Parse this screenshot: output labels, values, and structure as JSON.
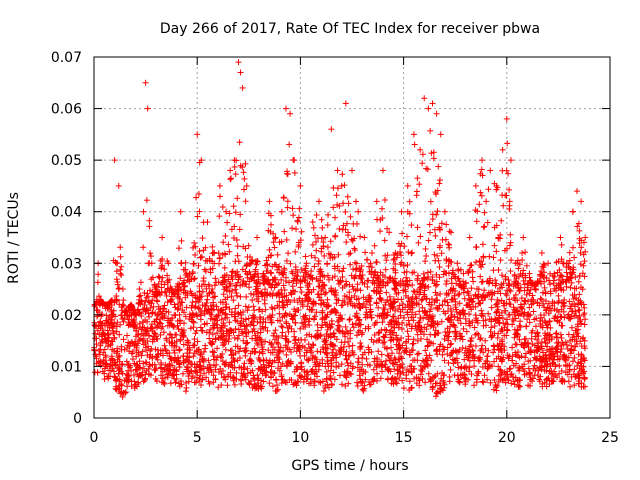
{
  "chart_data": {
    "type": "scatter",
    "title": "Day 266 of 2017, Rate Of TEC Index for receiver pbwa",
    "xlabel": "GPS time / hours",
    "ylabel": "ROTI / TECUs",
    "xlim": [
      0,
      25
    ],
    "ylim": [
      0,
      0.07
    ],
    "xticks": [
      0,
      5,
      10,
      15,
      20,
      25
    ],
    "xtick_labels": [
      "0",
      "5",
      "10",
      "15",
      "20",
      "25"
    ],
    "yticks": [
      0,
      0.01,
      0.02,
      0.03,
      0.04,
      0.05,
      0.06,
      0.07
    ],
    "ytick_labels": [
      "0",
      "0.01",
      "0.02",
      "0.03",
      "0.04",
      "0.05",
      "0.06",
      "0.07"
    ],
    "grid": true,
    "marker": "+",
    "color": "#ff0000",
    "series": [
      {
        "name": "ROTI",
        "x": [
          0.1,
          0.2,
          0.3,
          0.5,
          0.7,
          0.9,
          1.0,
          1.1,
          1.2,
          1.4,
          1.6,
          1.8,
          2.0,
          2.2,
          2.4,
          2.5,
          2.6,
          2.8,
          3.0,
          3.3,
          3.6,
          3.9,
          4.2,
          4.5,
          4.8,
          5.0,
          5.2,
          5.5,
          5.8,
          6.1,
          6.4,
          6.6,
          6.8,
          7.0,
          7.1,
          7.2,
          7.4,
          7.6,
          7.9,
          8.2,
          8.5,
          8.8,
          9.1,
          9.3,
          9.5,
          9.7,
          10.0,
          10.3,
          10.6,
          10.9,
          11.2,
          11.5,
          11.8,
          12.0,
          12.2,
          12.5,
          12.8,
          13.1,
          13.4,
          13.7,
          14.0,
          14.3,
          14.6,
          14.9,
          15.2,
          15.5,
          15.8,
          16.0,
          16.2,
          16.4,
          16.6,
          16.8,
          17.0,
          17.3,
          17.6,
          17.9,
          18.2,
          18.5,
          18.8,
          19.0,
          19.2,
          19.5,
          19.8,
          20.0,
          20.2,
          20.5,
          20.8,
          21.1,
          21.4,
          21.7,
          22.0,
          22.3,
          22.6,
          22.9,
          23.2,
          23.4,
          23.6,
          23.8
        ],
        "y": [
          0.012,
          0.03,
          0.018,
          0.022,
          0.015,
          0.02,
          0.05,
          0.03,
          0.045,
          0.025,
          0.016,
          0.02,
          0.018,
          0.025,
          0.04,
          0.065,
          0.06,
          0.03,
          0.025,
          0.035,
          0.03,
          0.022,
          0.04,
          0.028,
          0.033,
          0.055,
          0.05,
          0.038,
          0.032,
          0.045,
          0.04,
          0.048,
          0.05,
          0.069,
          0.067,
          0.064,
          0.045,
          0.03,
          0.035,
          0.028,
          0.042,
          0.035,
          0.04,
          0.06,
          0.059,
          0.05,
          0.045,
          0.03,
          0.038,
          0.042,
          0.035,
          0.056,
          0.048,
          0.045,
          0.061,
          0.048,
          0.04,
          0.035,
          0.03,
          0.042,
          0.048,
          0.036,
          0.032,
          0.04,
          0.045,
          0.055,
          0.052,
          0.062,
          0.06,
          0.061,
          0.059,
          0.055,
          0.04,
          0.036,
          0.03,
          0.028,
          0.035,
          0.045,
          0.05,
          0.042,
          0.048,
          0.045,
          0.052,
          0.058,
          0.05,
          0.03,
          0.035,
          0.028,
          0.025,
          0.032,
          0.03,
          0.028,
          0.035,
          0.03,
          0.04,
          0.044,
          0.042,
          0.035
        ],
        "band_low": [
          0.008,
          0.008,
          0.008,
          0.007,
          0.007,
          0.008,
          0.006,
          0.005,
          0.005,
          0.004,
          0.005,
          0.006,
          0.005,
          0.006,
          0.007,
          0.006,
          0.007,
          0.008,
          0.007,
          0.006,
          0.006,
          0.007,
          0.006,
          0.005,
          0.006,
          0.007,
          0.006,
          0.006,
          0.005,
          0.006,
          0.006,
          0.007,
          0.006,
          0.007,
          0.006,
          0.007,
          0.007,
          0.006,
          0.005,
          0.006,
          0.006,
          0.005,
          0.006,
          0.007,
          0.006,
          0.006,
          0.006,
          0.007,
          0.006,
          0.006,
          0.005,
          0.006,
          0.007,
          0.006,
          0.006,
          0.007,
          0.006,
          0.005,
          0.006,
          0.007,
          0.006,
          0.007,
          0.006,
          0.006,
          0.005,
          0.006,
          0.005,
          0.005,
          0.005,
          0.005,
          0.004,
          0.005,
          0.005,
          0.006,
          0.006,
          0.006,
          0.007,
          0.006,
          0.006,
          0.007,
          0.006,
          0.005,
          0.006,
          0.007,
          0.006,
          0.006,
          0.006,
          0.006,
          0.007,
          0.006,
          0.006,
          0.007,
          0.007,
          0.006,
          0.006,
          0.007,
          0.006,
          0.006
        ],
        "band_high": [
          0.022,
          0.024,
          0.023,
          0.022,
          0.022,
          0.023,
          0.024,
          0.023,
          0.022,
          0.02,
          0.021,
          0.022,
          0.02,
          0.022,
          0.025,
          0.024,
          0.025,
          0.023,
          0.024,
          0.024,
          0.025,
          0.024,
          0.025,
          0.024,
          0.025,
          0.026,
          0.025,
          0.025,
          0.025,
          0.026,
          0.027,
          0.027,
          0.028,
          0.029,
          0.029,
          0.028,
          0.028,
          0.027,
          0.026,
          0.026,
          0.027,
          0.026,
          0.027,
          0.027,
          0.028,
          0.028,
          0.027,
          0.026,
          0.026,
          0.028,
          0.027,
          0.027,
          0.028,
          0.029,
          0.029,
          0.028,
          0.027,
          0.026,
          0.027,
          0.027,
          0.028,
          0.027,
          0.026,
          0.026,
          0.027,
          0.026,
          0.027,
          0.028,
          0.028,
          0.029,
          0.03,
          0.029,
          0.027,
          0.026,
          0.026,
          0.025,
          0.026,
          0.026,
          0.027,
          0.027,
          0.027,
          0.026,
          0.026,
          0.027,
          0.026,
          0.026,
          0.026,
          0.025,
          0.026,
          0.026,
          0.026,
          0.025,
          0.026,
          0.027,
          0.026,
          0.027,
          0.026,
          0.025
        ]
      }
    ]
  }
}
